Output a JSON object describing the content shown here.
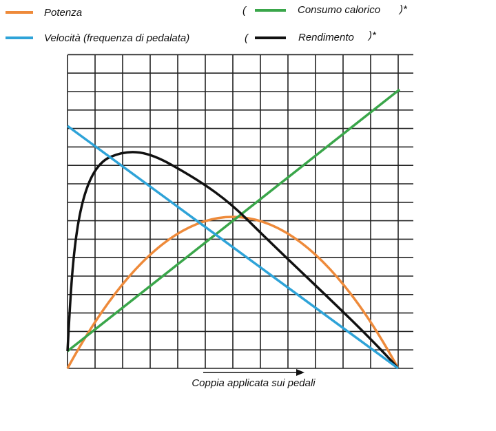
{
  "legend": {
    "items": [
      {
        "label": "Potenza"
      },
      {
        "label": "Velocità (frequenza di pedalata)"
      },
      {
        "open": "(",
        "label": "Consumo calorico",
        "close": ")*"
      },
      {
        "open": "(",
        "label": "Rendimento",
        "close": ")*"
      }
    ]
  },
  "axis": {
    "x_label": "Coppia applicata sui pedali"
  }
}
